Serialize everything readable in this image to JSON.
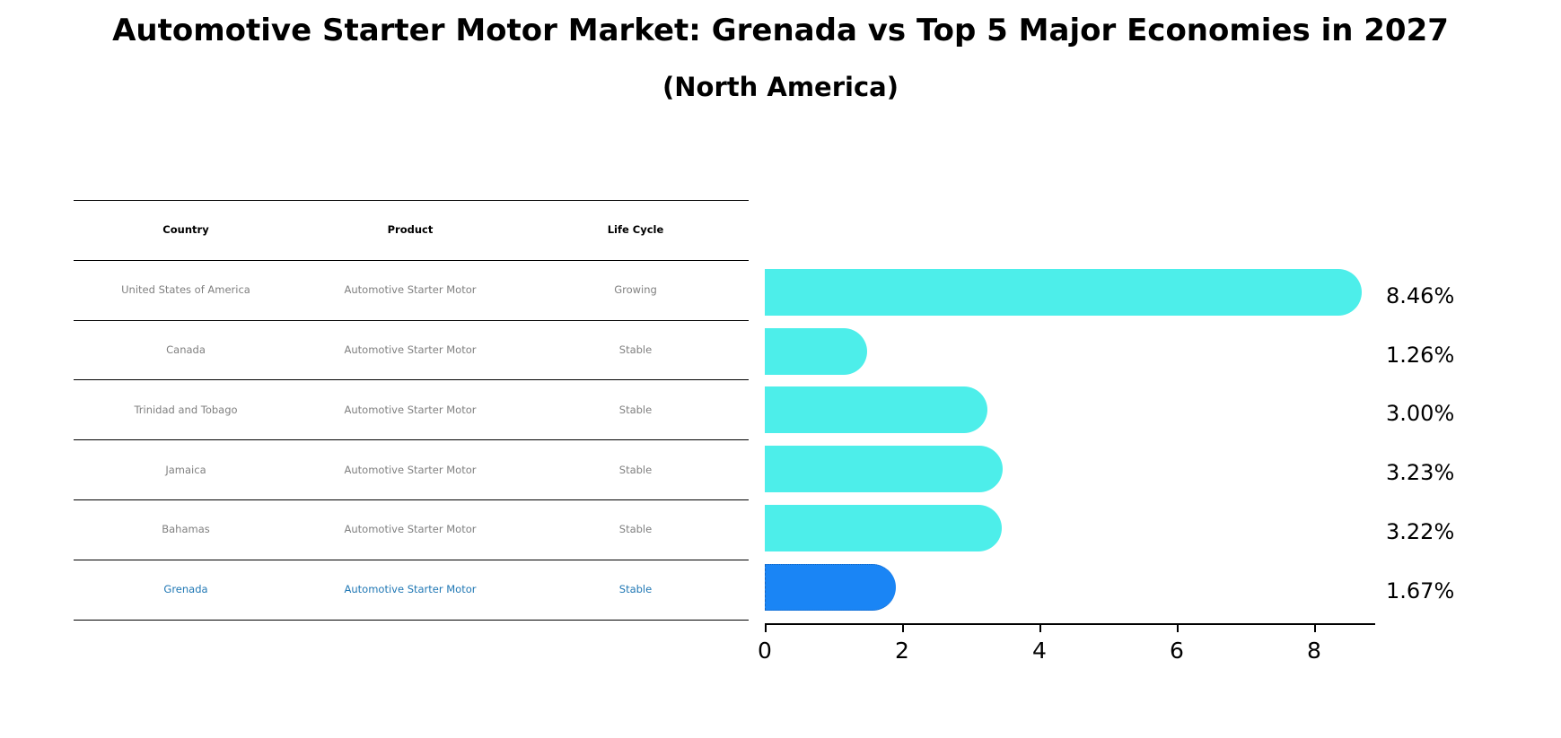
{
  "title": "Automotive Starter Motor Market: Grenada vs Top 5 Major Economies in 2027",
  "subtitle": "(North America)",
  "table": {
    "headers": [
      "Country",
      "Product",
      "Life Cycle"
    ],
    "rows": [
      [
        "United States of America",
        "Automotive Starter Motor",
        "Growing"
      ],
      [
        "Canada",
        "Automotive Starter Motor",
        "Stable"
      ],
      [
        "Trinidad and Tobago",
        "Automotive Starter Motor",
        "Stable"
      ],
      [
        "Jamaica",
        "Automotive Starter Motor",
        "Stable"
      ],
      [
        "Bahamas",
        "Automotive Starter Motor",
        "Stable"
      ],
      [
        "Grenada",
        "Automotive Starter Motor",
        "Stable"
      ]
    ]
  },
  "colors": {
    "bar": "#4deeea",
    "highlight_bar": "#1a85f5",
    "highlight_text": "#1f77b4",
    "row_text": "#808080"
  },
  "chart_data": {
    "type": "bar",
    "orientation": "horizontal",
    "title": "Automotive Starter Motor Market: Grenada vs Top 5 Major Economies in 2027",
    "subtitle": "(North America)",
    "categories": [
      "United States of America",
      "Canada",
      "Trinidad and Tobago",
      "Jamaica",
      "Bahamas",
      "Grenada"
    ],
    "values": [
      8.46,
      1.26,
      3.0,
      3.23,
      3.22,
      1.67
    ],
    "value_labels": [
      "8.46%",
      "1.26%",
      "3.00%",
      "3.23%",
      "3.22%",
      "1.67%"
    ],
    "highlight": "Grenada",
    "xlabel": "",
    "ylabel": "",
    "xlim": [
      0,
      8.9
    ],
    "xticks": [
      0,
      2,
      4,
      6,
      8
    ],
    "grid": false,
    "legend": null
  }
}
